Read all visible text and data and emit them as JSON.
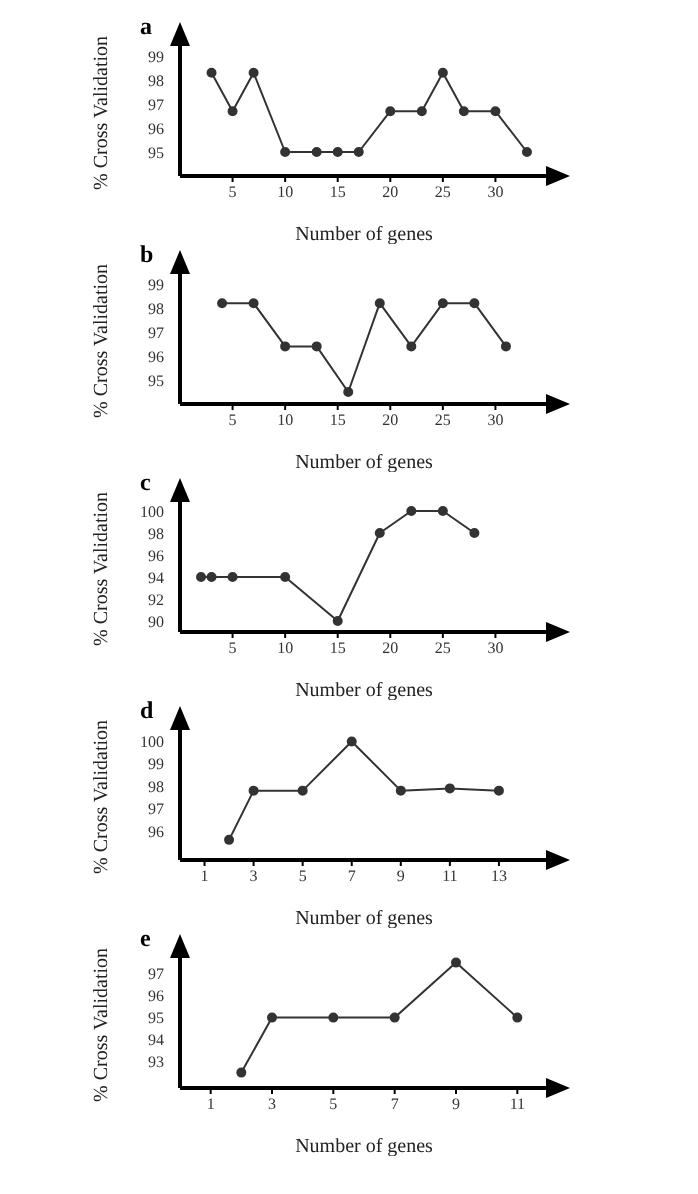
{
  "chart_data": [
    {
      "type": "line",
      "title": "a",
      "xlabel": "Number of genes",
      "ylabel": "% Cross Validation",
      "x": [
        3,
        5,
        7,
        10,
        13,
        15,
        17,
        20,
        23,
        25,
        27,
        30,
        33
      ],
      "series": [
        {
          "color": "#333333",
          "values": [
            98.3,
            96.7,
            98.3,
            95,
            95,
            95,
            95,
            96.7,
            96.7,
            98.3,
            96.7,
            96.7,
            95
          ]
        }
      ],
      "xlim": [
        0,
        35
      ],
      "xticks": [
        5,
        10,
        15,
        20,
        25,
        30
      ],
      "ylim": [
        94,
        99.5
      ],
      "yticks": [
        95,
        96,
        97,
        98,
        99
      ],
      "grid": false,
      "marker": "circle"
    },
    {
      "type": "line",
      "title": "b",
      "xlabel": "Number of genes",
      "ylabel": "% Cross Validation",
      "x": [
        4,
        7,
        10,
        13,
        16,
        19,
        22,
        25,
        28,
        31
      ],
      "series": [
        {
          "color": "#333333",
          "values": [
            98.2,
            98.2,
            96.4,
            96.4,
            94.5,
            98.2,
            96.4,
            98.2,
            98.2,
            96.4
          ]
        }
      ],
      "xlim": [
        0,
        35
      ],
      "xticks": [
        5,
        10,
        15,
        20,
        25,
        30
      ],
      "ylim": [
        94,
        99.5
      ],
      "yticks": [
        95,
        96,
        97,
        98,
        99
      ],
      "grid": false,
      "marker": "circle"
    },
    {
      "type": "line",
      "title": "c",
      "xlabel": "Number of genes",
      "ylabel": "% Cross Validation",
      "x": [
        2,
        3,
        5,
        10,
        15,
        19,
        22,
        25,
        28
      ],
      "series": [
        {
          "color": "#333333",
          "values": [
            94,
            94,
            94,
            94,
            90,
            98,
            100,
            100,
            98
          ]
        }
      ],
      "xlim": [
        0,
        35
      ],
      "xticks": [
        5,
        10,
        15,
        20,
        25,
        30
      ],
      "ylim": [
        89,
        101
      ],
      "yticks": [
        90,
        92,
        94,
        96,
        98,
        100
      ],
      "grid": false,
      "marker": "circle"
    },
    {
      "type": "line",
      "title": "d",
      "xlabel": "Number of genes",
      "ylabel": "% Cross Validation",
      "x": [
        2,
        3,
        5,
        7,
        9,
        11,
        13
      ],
      "series": [
        {
          "color": "#333333",
          "values": [
            95.6,
            97.8,
            97.8,
            100,
            97.8,
            97.9,
            97.8
          ]
        }
      ],
      "xlim": [
        0,
        15
      ],
      "xticks": [
        1,
        3,
        5,
        7,
        9,
        11,
        13
      ],
      "ylim": [
        94.7,
        100.6
      ],
      "yticks": [
        96,
        97,
        98,
        99,
        100
      ],
      "grid": false,
      "marker": "circle"
    },
    {
      "type": "line",
      "title": "e",
      "xlabel": "Number of genes",
      "ylabel": "% Cross Validation",
      "x": [
        2,
        3,
        5,
        7,
        9,
        11
      ],
      "series": [
        {
          "color": "#333333",
          "values": [
            92.5,
            95,
            95,
            95,
            97.5,
            95
          ]
        }
      ],
      "xlim": [
        0,
        12
      ],
      "xticks": [
        1,
        3,
        5,
        7,
        9,
        11
      ],
      "ylim": [
        91.8,
        97.8
      ],
      "yticks": [
        93,
        94,
        95,
        96,
        97
      ],
      "grid": false,
      "marker": "circle"
    }
  ]
}
